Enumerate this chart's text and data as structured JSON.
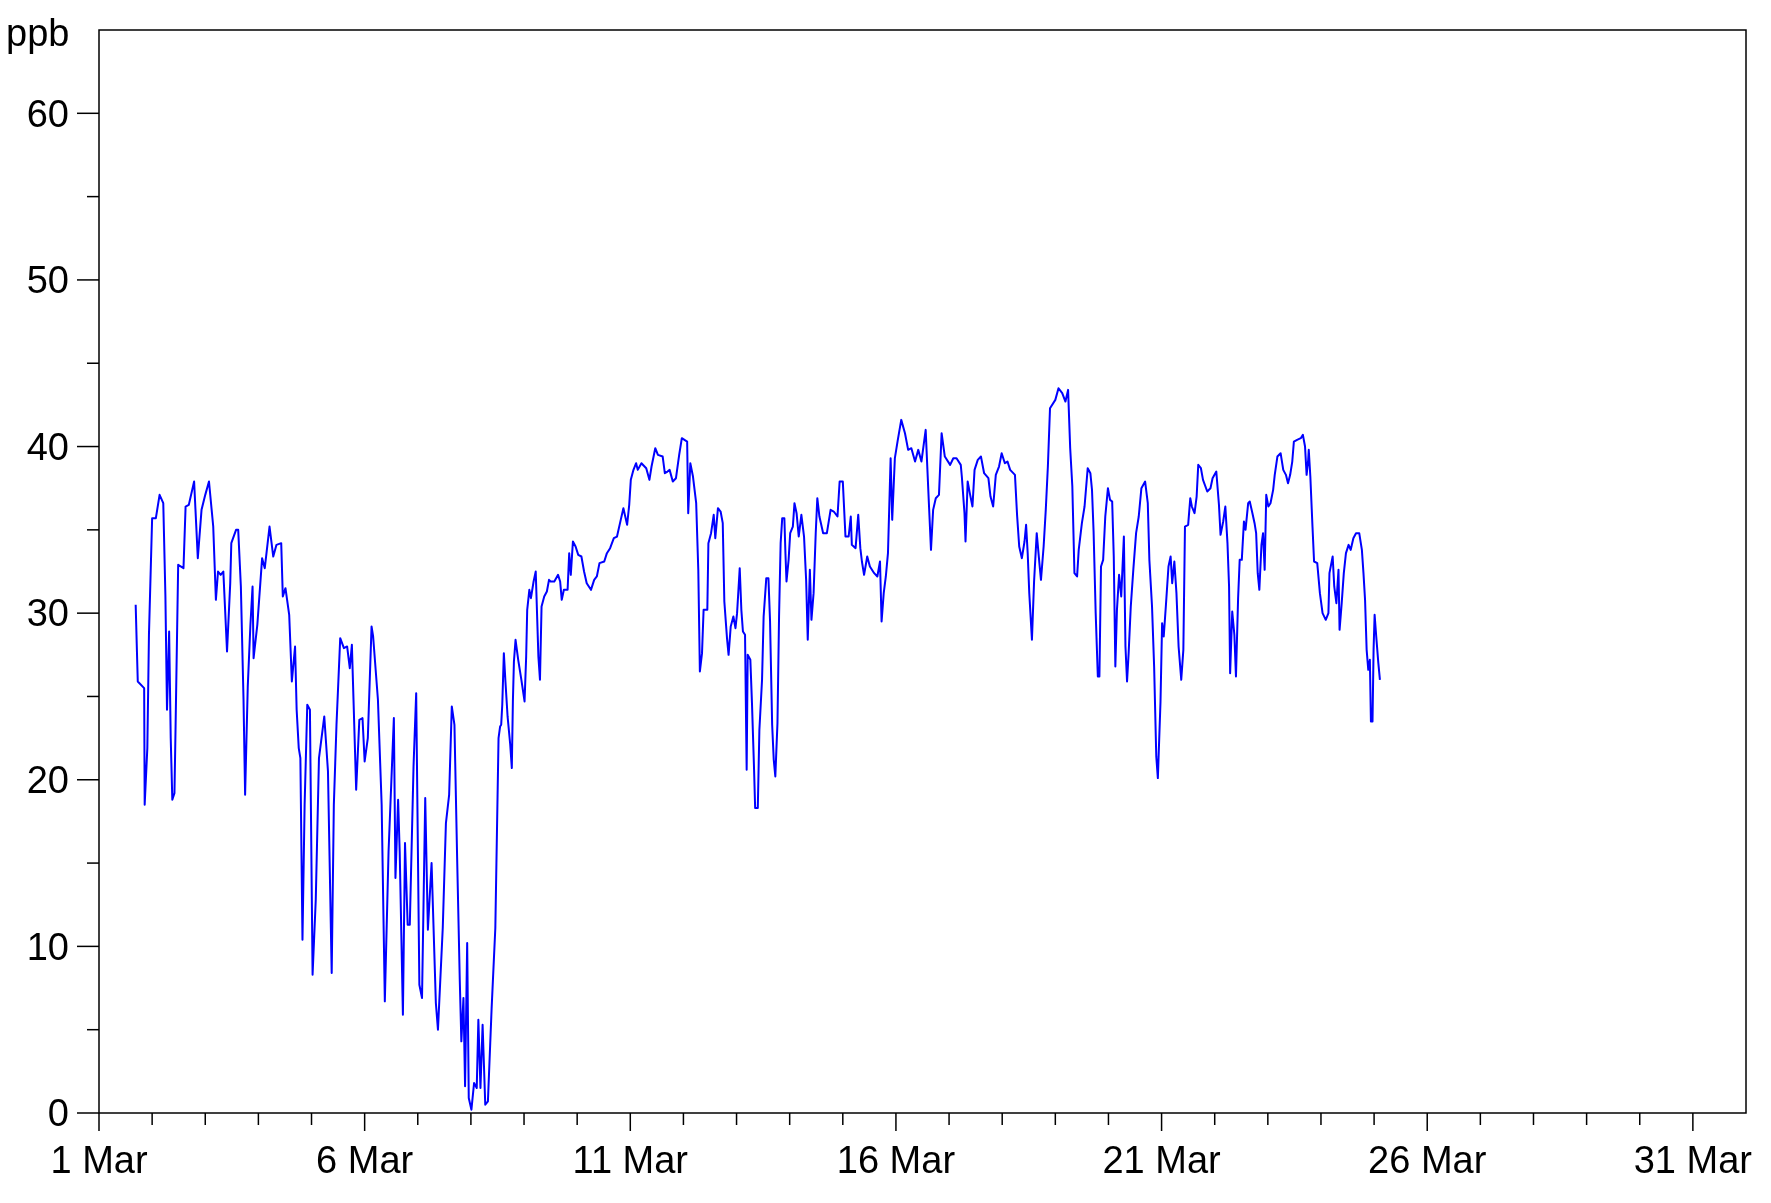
{
  "chart_data": {
    "type": "line",
    "ylabel": "ppb",
    "xlim": [
      "--03-01",
      "--04-01"
    ],
    "xticks": [
      {
        "value": "--03-01",
        "label": "1 Mar"
      },
      {
        "value": "--03-02",
        "label": null
      },
      {
        "value": "--03-03",
        "label": null
      },
      {
        "value": "--03-04",
        "label": null
      },
      {
        "value": "--03-05",
        "label": null
      },
      {
        "value": "--03-06",
        "label": "6 Mar"
      },
      {
        "value": "--03-07",
        "label": null
      },
      {
        "value": "--03-08",
        "label": null
      },
      {
        "value": "--03-09",
        "label": null
      },
      {
        "value": "--03-10",
        "label": null
      },
      {
        "value": "--03-11",
        "label": "11 Mar"
      },
      {
        "value": "--03-12",
        "label": null
      },
      {
        "value": "--03-13",
        "label": null
      },
      {
        "value": "--03-14",
        "label": null
      },
      {
        "value": "--03-15",
        "label": null
      },
      {
        "value": "--03-16",
        "label": "16 Mar"
      },
      {
        "value": "--03-17",
        "label": null
      },
      {
        "value": "--03-18",
        "label": null
      },
      {
        "value": "--03-19",
        "label": null
      },
      {
        "value": "--03-20",
        "label": null
      },
      {
        "value": "--03-21",
        "label": "21 Mar"
      },
      {
        "value": "--03-22",
        "label": null
      },
      {
        "value": "--03-23",
        "label": null
      },
      {
        "value": "--03-24",
        "label": null
      },
      {
        "value": "--03-25",
        "label": null
      },
      {
        "value": "--03-26",
        "label": "26 Mar"
      },
      {
        "value": "--03-27",
        "label": null
      },
      {
        "value": "--03-28",
        "label": null
      },
      {
        "value": "--03-29",
        "label": null
      },
      {
        "value": "--03-30",
        "label": null
      },
      {
        "value": "--03-31",
        "label": "31 Mar"
      }
    ],
    "ylim": [
      0,
      65
    ],
    "yticks": [
      0,
      {
        "value": 5,
        "label": null
      },
      10,
      {
        "value": 15,
        "label": null
      },
      20,
      {
        "value": 25,
        "label": null
      },
      30,
      {
        "value": 35,
        "label": null
      },
      40,
      {
        "value": 45,
        "label": null
      },
      50,
      {
        "value": 55,
        "label": null
      },
      60
    ],
    "grid": false,
    "marker": "none",
    "line_style": "solid",
    "series": [
      {
        "color": "#0000ff",
        "x": [
          "--03-01T16:34",
          "--03-01T17:02",
          "--03-01T17:31",
          "--03-01T20:24",
          "--03-01T20:38",
          "--03-01T21:50",
          "--03-01T22:34",
          "--03-02T00:00",
          "--03-02T01:41",
          "--03-02T03:22",
          "--03-02T05:02",
          "--03-02T06:00",
          "--03-02T06:43",
          "--03-02T07:41",
          "--03-02T08:24",
          "--03-02T09:07",
          "--03-02T10:05",
          "--03-02T10:34",
          "--03-02T11:46",
          "--03-02T14:10",
          "--03-02T15:07",
          "--03-02T16:34",
          "--03-02T18:58",
          "--03-02T20:38",
          "--03-02T22:19",
          "--03-03T00:00",
          "--03-03T01:41",
          "--03-03T03:36",
          "--03-03T04:48",
          "--03-03T05:46",
          "--03-03T06:58",
          "--03-03T08:10",
          "--03-03T09:50",
          "--03-03T11:17",
          "--03-03T11:46",
          "--03-03T13:55",
          "--03-03T14:53",
          "--03-03T16:05",
          "--03-03T17:17",
          "--03-03T18:00",
          "--03-03T19:12",
          "--03-03T20:24",
          "--03-03T21:22",
          "--03-03T21:50",
          "--03-03T23:31",
          "--03-04T01:41",
          "--03-04T02:53",
          "--03-04T05:02",
          "--03-04T06:43",
          "--03-04T08:10",
          "--03-04T10:19",
          "--03-04T11:02",
          "--03-04T12:14",
          "--03-04T13:55",
          "--03-04T15:07",
          "--03-04T16:34",
          "--03-04T17:17",
          "--03-04T18:14",
          "--03-04T18:58",
          "--03-04T19:55",
          "--03-04T20:53",
          "--03-04T22:05",
          "--03-04T23:17",
          "--03-05T00:29",
          "--03-05T01:55",
          "--03-05T03:22",
          "--03-05T05:46",
          "--03-05T07:26",
          "--03-05T09:07",
          "--03-05T10:05",
          "--03-05T11:17",
          "--03-05T12:58",
          "--03-05T14:38",
          "--03-05T16:05",
          "--03-05T17:17",
          "--03-05T18:14",
          "--03-05T18:58",
          "--03-05T20:10",
          "--03-05T21:36",
          "--03-05T23:02",
          "--03-06T00:00",
          "--03-06T01:26",
          "--03-06T03:07",
          "--03-06T03:50",
          "--03-06T06:00",
          "--03-06T07:41",
          "--03-06T09:07",
          "--03-06T10:48",
          "--03-06T13:12",
          "--03-06T13:55",
          "--03-06T15:07",
          "--03-06T15:50",
          "--03-06T17:17",
          "--03-06T18:14",
          "--03-06T19:26",
          "--03-06T20:24",
          "--03-06T22:05",
          "--03-06T23:17",
          "--03-07T00:43",
          "--03-07T01:55",
          "--03-07T03:22",
          "--03-07T04:34",
          "--03-07T06:14",
          "--03-07T08:10",
          "--03-07T09:07",
          "--03-07T11:17",
          "--03-07T12:43",
          "--03-07T14:10",
          "--03-07T15:22",
          "--03-07T16:34",
          "--03-07T17:46",
          "--03-07T18:58",
          "--03-07T19:41",
          "--03-07T20:38",
          "--03-07T21:22",
          "--03-07T22:19",
          "--03-07T23:02",
          "--03-08T00:14",
          "--03-08T01:26",
          "--03-08T02:38",
          "--03-08T03:22",
          "--03-08T04:19",
          "--03-08T05:17",
          "--03-08T06:29",
          "--03-08T07:41",
          "--03-08T09:22",
          "--03-08T11:02",
          "--03-08T12:29",
          "--03-08T13:12",
          "--03-08T13:41",
          "--03-08T14:10",
          "--03-08T14:53",
          "--03-08T15:36",
          "--03-08T16:34",
          "--03-08T17:46",
          "--03-08T18:29",
          "--03-08T18:58",
          "--03-08T19:26",
          "--03-08T20:10",
          "--03-08T21:22",
          "--03-08T22:48",
          "--03-09T00:14",
          "--03-09T00:58",
          "--03-09T01:26",
          "--03-09T02:24",
          "--03-09T03:07",
          "--03-09T04:19",
          "--03-09T05:17",
          "--03-09T06:29",
          "--03-09T07:12",
          "--03-09T07:55",
          "--03-09T09:07",
          "--03-09T10:19",
          "--03-09T11:17",
          "--03-09T12:00",
          "--03-09T13:41",
          "--03-09T15:22",
          "--03-09T16:19",
          "--03-09T17:02",
          "--03-09T18:00",
          "--03-09T19:41",
          "--03-09T20:24",
          "--03-09T21:07",
          "--03-09T22:05",
          "--03-09T23:17",
          "--03-10T00:29",
          "--03-10T01:55",
          "--03-10T03:07",
          "--03-10T04:19",
          "--03-10T06:14",
          "--03-10T07:41",
          "--03-10T08:53",
          "--03-10T10:05",
          "--03-10T12:14",
          "--03-10T13:26",
          "--03-10T14:53",
          "--03-10T16:34",
          "--03-10T18:00",
          "--03-10T19:41",
          "--03-10T20:53",
          "--03-10T22:34",
          "--03-10T23:31",
          "--03-11T00:14",
          "--03-11T01:26",
          "--03-11T02:38",
          "--03-11T03:22",
          "--03-11T05:02",
          "--03-11T07:12",
          "--03-11T08:38",
          "--03-11T09:36",
          "--03-11T11:17",
          "--03-11T12:29",
          "--03-11T14:38",
          "--03-11T15:36",
          "--03-11T16:48",
          "--03-11T17:46",
          "--03-11T19:12",
          "--03-11T20:38",
          "--03-11T22:05",
          "--03-11T23:17",
          "--03-12T01:41",
          "--03-12T02:10",
          "--03-12T03:07",
          "--03-12T04:19",
          "--03-12T05:46",
          "--03-12T06:43",
          "--03-12T07:26",
          "--03-12T08:24",
          "--03-12T09:07",
          "--03-12T10:48",
          "--03-12T11:17",
          "--03-12T12:29",
          "--03-12T13:41",
          "--03-12T14:24",
          "--03-12T15:36",
          "--03-12T16:48",
          "--03-12T17:46",
          "--03-12T18:29",
          "--03-12T19:41",
          "--03-12T20:24",
          "--03-12T21:22",
          "--03-12T22:34",
          "--03-12T23:31",
          "--03-13T00:14",
          "--03-13T01:26",
          "--03-13T02:10",
          "--03-13T02:53",
          "--03-13T03:50",
          "--03-13T04:34",
          "--03-13T05:02",
          "--03-13T06:14",
          "--03-13T06:58",
          "--03-13T07:55",
          "--03-13T08:24",
          "--03-13T09:36",
          "--03-13T10:19",
          "--03-13T11:31",
          "--03-13T12:14",
          "--03-13T13:26",
          "--03-13T14:24",
          "--03-13T15:07",
          "--03-13T16:05",
          "--03-13T16:48",
          "--03-13T17:31",
          "--03-13T18:29",
          "--03-13T19:12",
          "--03-13T19:55",
          "--03-13T20:38",
          "--03-13T21:36",
          "--03-13T22:05",
          "--03-13T22:34",
          "--03-13T23:31",
          "--03-14T00:14",
          "--03-14T01:26",
          "--03-14T02:10",
          "--03-14T03:07",
          "--03-14T04:05",
          "--03-14T05:17",
          "--03-14T06:29",
          "--03-14T07:26",
          "--03-14T08:10",
          "--03-14T09:07",
          "--03-14T09:50",
          "--03-14T10:48",
          "--03-14T11:46",
          "--03-14T12:29",
          "--03-14T13:26",
          "--03-14T15:07",
          "--03-14T16:48",
          "--03-14T18:29",
          "--03-14T19:55",
          "--03-14T21:36",
          "--03-14T22:34",
          "--03-15T00:00",
          "--03-15T01:12",
          "--03-15T02:38",
          "--03-15T03:36",
          "--03-15T04:05",
          "--03-15T05:46",
          "--03-15T06:58",
          "--03-15T07:55",
          "--03-15T08:38",
          "--03-15T09:36",
          "--03-15T11:02",
          "--03-15T12:14",
          "--03-15T14:10",
          "--03-15T15:36",
          "--03-15T16:48",
          "--03-15T17:31",
          "--03-15T18:29",
          "--03-15T19:26",
          "--03-15T20:24",
          "--03-15T21:36",
          "--03-15T22:19",
          "--03-15T23:31",
          "--03-16T00:43",
          "--03-16T02:24",
          "--03-16T04:05",
          "--03-16T05:31",
          "--03-16T06:58",
          "--03-16T08:38",
          "--03-16T10:05",
          "--03-16T11:31",
          "--03-16T13:26",
          "--03-16T14:53",
          "--03-16T15:50",
          "--03-16T16:48",
          "--03-16T18:00",
          "--03-16T19:26",
          "--03-16T20:38",
          "--03-16T22:05",
          "--03-17T00:29",
          "--03-17T01:55",
          "--03-17T03:22",
          "--03-17T05:17",
          "--03-17T05:46",
          "--03-17T06:58",
          "--03-17T07:26",
          "--03-17T08:24",
          "--03-17T09:22",
          "--03-17T10:34",
          "--03-17T11:31",
          "--03-17T12:58",
          "--03-17T14:24",
          "--03-17T15:50",
          "--03-17T17:46",
          "--03-17T18:43",
          "--03-17T19:55",
          "--03-17T21:07",
          "--03-17T22:34",
          "--03-17T23:46",
          "--03-18T01:12",
          "--03-18T02:24",
          "--03-18T03:36",
          "--03-18T05:46",
          "--03-18T06:43",
          "--03-18T07:41",
          "--03-18T08:53",
          "--03-18T10:05",
          "--03-18T10:48",
          "--03-18T11:31",
          "--03-18T12:14",
          "--03-18T13:26",
          "--03-18T14:24",
          "--03-18T15:36",
          "--03-18T16:48",
          "--03-18T17:31",
          "--03-18T18:43",
          "--03-18T19:41",
          "--03-18T20:38",
          "--03-18T21:36",
          "--03-19T00:00",
          "--03-19T01:26",
          "--03-19T03:07",
          "--03-19T04:34",
          "--03-19T05:46",
          "--03-19T06:43",
          "--03-19T07:41",
          "--03-19T08:38",
          "--03-19T09:50",
          "--03-19T10:34",
          "--03-19T12:00",
          "--03-19T13:12",
          "--03-19T14:38",
          "--03-19T15:50",
          "--03-19T16:34",
          "--03-19T17:17",
          "--03-19T18:14",
          "--03-19T19:12",
          "--03-19T19:55",
          "--03-19T20:38",
          "--03-19T21:36",
          "--03-19T22:34",
          "--03-19T23:46",
          "--03-20T00:43",
          "--03-20T01:41",
          "--03-20T02:24",
          "--03-20T03:07",
          "--03-20T03:50",
          "--03-20T04:48",
          "--03-20T05:46",
          "--03-20T06:58",
          "--03-20T07:41",
          "--03-20T08:24",
          "--03-20T09:07",
          "--03-20T10:05",
          "--03-20T11:17",
          "--03-20T12:29",
          "--03-20T13:41",
          "--03-20T14:53",
          "--03-20T16:34",
          "--03-20T17:46",
          "--03-20T18:29",
          "--03-20T19:41",
          "--03-20T20:38",
          "--03-20T21:36",
          "--03-20T22:19",
          "--03-20T23:31",
          "--03-21T00:14",
          "--03-21T00:58",
          "--03-21T01:55",
          "--03-21T03:07",
          "--03-21T04:05",
          "--03-21T04:48",
          "--03-21T05:46",
          "--03-21T06:43",
          "--03-21T07:41",
          "--03-21T08:53",
          "--03-21T09:50",
          "--03-21T10:34",
          "--03-21T12:00",
          "--03-21T12:58",
          "--03-21T13:41",
          "--03-21T14:53",
          "--03-21T15:50",
          "--03-21T16:34",
          "--03-21T17:46",
          "--03-21T18:43",
          "--03-21T20:38",
          "--03-21T22:05",
          "--03-21T23:02",
          "--03-22T00:43",
          "--03-22T01:55",
          "--03-22T02:38",
          "--03-22T03:50",
          "--03-22T04:48",
          "--03-22T05:46",
          "--03-22T06:29",
          "--03-22T06:58",
          "--03-22T07:55",
          "--03-22T08:53",
          "--03-22T09:36",
          "--03-22T10:34",
          "--03-22T11:17",
          "--03-22T12:14",
          "--03-22T13:12",
          "--03-22T13:55",
          "--03-22T15:07",
          "--03-22T15:50",
          "--03-22T17:02",
          "--03-22T18:00",
          "--03-22T18:43",
          "--03-22T19:26",
          "--03-22T20:10",
          "--03-22T21:07",
          "--03-22T21:50",
          "--03-22T22:34",
          "--03-22T23:17",
          "--03-23T00:14",
          "--03-23T01:12",
          "--03-23T02:24",
          "--03-23T03:07",
          "--03-23T04:19",
          "--03-23T05:46",
          "--03-23T06:58",
          "--03-23T08:10",
          "--03-23T09:07",
          "--03-23T10:05",
          "--03-23T11:02",
          "--03-23T11:46",
          "--03-23T13:12",
          "--03-23T14:53",
          "--03-23T15:50",
          "--03-23T16:48",
          "--03-23T17:31",
          "--03-23T18:14",
          "--03-23T18:29",
          "--03-23T19:12",
          "--03-23T20:10",
          "--03-23T20:53",
          "--03-23T22:19",
          "--03-23T23:31",
          "--03-24T00:43",
          "--03-24T02:10",
          "--03-24T03:22",
          "--03-24T03:50",
          "--03-24T05:17",
          "--03-24T06:00",
          "--03-24T06:58",
          "--03-24T07:55",
          "--03-24T08:24",
          "--03-24T09:22",
          "--03-24T10:19",
          "--03-24T11:17",
          "--03-24T12:29",
          "--03-24T13:26",
          "--03-24T14:38",
          "--03-24T15:50",
          "--03-24T17:17",
          "--03-24T18:29",
          "--03-24T19:12",
          "--03-24T19:55",
          "--03-24T20:38",
          "--03-24T21:22",
          "--03-24T22:05",
          "--03-24T22:34",
          "--03-24T23:17",
          "--03-24T23:46",
          "--03-25T00:14",
          "--03-25T00:58",
          "--03-25T01:55",
          "--03-25T02:38"
        ],
        "values": [
          30.5,
          28.2,
          25.9,
          25.5,
          18.5,
          21.9,
          28.7,
          35.7,
          35.7,
          37.1,
          36.6,
          31,
          24.2,
          28.9,
          22.5,
          18.8,
          19.2,
          23,
          32.9,
          32.7,
          36.4,
          36.5,
          37.9,
          33.3,
          36.2,
          37.1,
          37.9,
          35.2,
          30.8,
          32.5,
          32.3,
          32.5,
          27.7,
          31.8,
          34.2,
          35,
          35,
          31.6,
          24.8,
          19.1,
          25.6,
          29.3,
          31.6,
          27.3,
          29.3,
          33.3,
          32.7,
          35.2,
          33.4,
          34.1,
          34.2,
          31,
          31.5,
          29.9,
          25.9,
          28,
          24.2,
          21.9,
          21.3,
          10.4,
          18.5,
          24.5,
          24.2,
          8.3,
          12.8,
          21.3,
          23.8,
          20.5,
          8.4,
          18.5,
          23.3,
          28.5,
          27.9,
          28,
          26.7,
          28.1,
          24.8,
          19.4,
          23.6,
          23.7,
          21.1,
          22.5,
          29.2,
          28.6,
          24.8,
          18.5,
          6.7,
          15.7,
          23.7,
          14.1,
          18.8,
          15.7,
          5.9,
          16.2,
          11.3,
          11.3,
          20.8,
          25.2,
          7.7,
          6.9,
          18.9,
          11,
          15,
          6.6,
          5,
          11.1,
          17.4,
          19.1,
          24.4,
          23.3,
          15.4,
          8,
          4.3,
          6.9,
          1.6,
          10.2,
          0.9,
          0.2,
          1.8,
          1.5,
          5.6,
          1.5,
          5.3,
          0.5,
          0.7,
          6.3,
          11.1,
          22.5,
          23.2,
          23.3,
          24.5,
          27.6,
          25.9,
          23.8,
          22.1,
          20.7,
          24.7,
          27.1,
          28.4,
          27.2,
          26,
          24.7,
          27.4,
          30.2,
          31.4,
          30.9,
          31.9,
          32.5,
          27.4,
          26,
          30.4,
          31,
          31.3,
          32,
          31.9,
          31.9,
          32.3,
          31.9,
          30.8,
          31.4,
          31.4,
          33.6,
          32.3,
          34.3,
          34,
          33.5,
          33.4,
          32.5,
          31.8,
          31.4,
          32,
          32.2,
          33,
          33.1,
          33.6,
          33.9,
          34.5,
          34.6,
          35.6,
          36.3,
          35.3,
          36.5,
          38,
          38.6,
          39,
          38.6,
          39,
          38.7,
          38,
          38.8,
          39.9,
          39.5,
          39.4,
          38.4,
          38.5,
          38.6,
          37.9,
          38.1,
          39.5,
          40.5,
          40.3,
          36,
          39,
          38.2,
          36.6,
          32.6,
          26.5,
          27.6,
          30.2,
          30.2,
          34.2,
          34.8,
          35.9,
          34.5,
          36.3,
          36.1,
          35.4,
          30.7,
          28.5,
          27.5,
          29.2,
          29.8,
          29.1,
          30,
          32.7,
          30.2,
          28.9,
          28.7,
          20.6,
          27.5,
          27.2,
          24.6,
          20.6,
          18.3,
          18.3,
          23,
          26,
          29.8,
          32.1,
          32.1,
          29.6,
          23.3,
          21.2,
          20.2,
          23.4,
          29.8,
          34.2,
          35.7,
          35.7,
          33.6,
          31.9,
          33.2,
          34.8,
          35.2,
          36.6,
          36,
          34.6,
          35.9,
          34.6,
          32,
          28.4,
          32.6,
          29.6,
          31.2,
          34.8,
          36.9,
          35.8,
          34.8,
          34.8,
          36.2,
          36.1,
          35.8,
          37.9,
          37.9,
          34.6,
          34.6,
          35.8,
          34.1,
          33.9,
          35.9,
          33.9,
          33.1,
          32.3,
          33.4,
          32.8,
          32.4,
          32.2,
          33.1,
          29.5,
          31.2,
          32.2,
          33.6,
          39.3,
          35.6,
          39.3,
          40.3,
          41.6,
          40.8,
          39.8,
          39.9,
          39.1,
          39.8,
          39.1,
          41,
          36.6,
          33.8,
          36.2,
          36.9,
          37.1,
          40.8,
          39.4,
          38.9,
          39.3,
          39.3,
          38.9,
          38.2,
          36,
          34.3,
          37.9,
          37.2,
          36.4,
          38.6,
          39.2,
          39.4,
          38.4,
          38.1,
          37,
          36.4,
          38.3,
          38.8,
          39.6,
          39,
          39.1,
          38.6,
          38.3,
          35.9,
          34,
          33.3,
          34.3,
          35.3,
          33.6,
          31.2,
          28.4,
          31.9,
          34.8,
          33,
          32,
          34,
          36.2,
          38.8,
          42.3,
          42.8,
          43.5,
          43.2,
          42.7,
          43.4,
          39.9,
          37.6,
          32.4,
          32.2,
          33.8,
          35.4,
          36.4,
          38.7,
          38.4,
          37.4,
          34.9,
          30,
          26.2,
          26.2,
          32.8,
          33.2,
          35.8,
          37.5,
          36.8,
          36.7,
          33.4,
          26.8,
          30.2,
          32.3,
          31,
          34.6,
          28,
          25.9,
          27.6,
          30.4,
          32.7,
          34.8,
          35.8,
          37.5,
          37.9,
          36.6,
          33.2,
          30.4,
          26.8,
          21.4,
          20.1,
          24.7,
          29.4,
          28.6,
          30.4,
          32.8,
          33.4,
          31.8,
          33.1,
          31.2,
          28,
          26,
          27.8,
          35.2,
          35.3,
          36.9,
          36.4,
          36,
          37,
          38.9,
          38.7,
          38,
          37.3,
          37.5,
          38.1,
          38.5,
          36.5,
          34.7,
          35.5,
          36.4,
          34.2,
          31.6,
          26.4,
          30.1,
          28.7,
          26.2,
          30.9,
          33.2,
          33.2,
          35.5,
          35,
          36.6,
          36.7,
          36,
          35.4,
          34.8,
          32.4,
          31.4,
          34.1,
          34.8,
          32.6,
          37.1,
          36.4,
          36.6,
          37.4,
          38.3,
          39.4,
          39.6,
          38.6,
          38.3,
          37.8,
          38.3,
          39.1,
          40.3,
          40.4,
          40.5,
          40.7,
          40,
          38.3,
          39.2,
          39.8,
          38.2,
          35.2,
          33.1,
          33,
          31.2,
          30,
          29.6,
          30,
          32.4,
          33.4,
          31.6,
          30.6,
          32.6,
          29,
          30.6,
          32.4,
          33.6,
          34.1,
          33.8,
          34.5,
          34.8,
          34.8,
          33.8,
          32.4,
          30.8,
          27.8,
          26.6,
          27.2,
          23.5,
          23.5,
          27.8,
          29.9,
          28.6,
          27,
          26
        ]
      }
    ]
  }
}
